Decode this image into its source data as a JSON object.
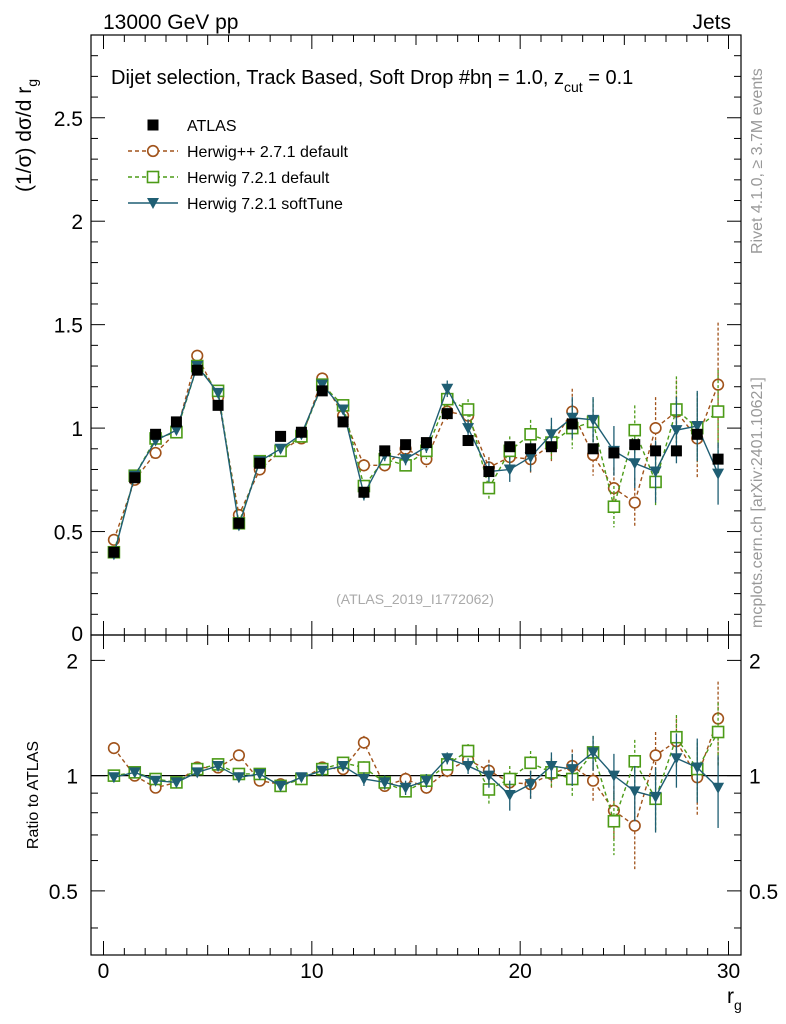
{
  "header": {
    "energy": "13000 GeV pp",
    "category": "Jets"
  },
  "side_labels": {
    "rivet": "Rivet 4.1.0, ≥ 3.7M events",
    "mcplots": "mcplots.cern.ch [arXiv:2401.10621]"
  },
  "colors": {
    "atlas": "#000000",
    "herwigpp": "#a0521a",
    "herwig7_default": "#4c9b17",
    "herwig7_soft": "#1f5e73",
    "ratio_line": "#000000"
  },
  "chart_data": [
    {
      "type": "scatter",
      "name": "main",
      "title": "Dijet selection, Track Based, Soft Drop #bη = 1.0, z",
      "title_sub": "cut",
      "title_tail": " = 0.1",
      "ylabel": "(1/σ) dσ/d r",
      "ylabel_sub": "g",
      "watermark": "(ATLAS_2019_I1772062)",
      "xlim": [
        -0.6,
        30.6
      ],
      "ylim": [
        0,
        2.9
      ],
      "yticks": [
        0.5,
        1,
        1.5,
        2,
        2.5
      ],
      "ytick_labels": [
        "0.5",
        "1",
        "1.5",
        "2",
        "2.5"
      ],
      "y0_label": "0",
      "x": [
        0.5,
        1.5,
        2.5,
        3.5,
        4.5,
        5.5,
        6.5,
        7.5,
        8.5,
        9.5,
        10.5,
        11.5,
        12.5,
        13.5,
        14.5,
        15.5,
        16.5,
        17.5,
        18.5,
        19.5,
        20.5,
        21.5,
        22.5,
        23.5,
        24.5,
        25.5,
        26.5,
        27.5,
        28.5,
        29.5
      ],
      "series": [
        {
          "name": "ATLAS",
          "key": "atlas",
          "marker": "square",
          "values": [
            0.4,
            0.76,
            0.97,
            1.03,
            1.28,
            1.11,
            0.54,
            0.83,
            0.96,
            0.98,
            1.18,
            1.03,
            0.69,
            0.89,
            0.92,
            0.93,
            1.07,
            0.94,
            0.79,
            0.91,
            0.9,
            0.91,
            1.02,
            0.9,
            0.88,
            0.92,
            0.89,
            0.89,
            0.97,
            0.85
          ],
          "errors": [
            0.01,
            0.01,
            0.01,
            0.01,
            0.01,
            0.01,
            0.01,
            0.01,
            0.01,
            0.01,
            0.01,
            0.01,
            0.01,
            0.01,
            0.01,
            0.01,
            0.01,
            0.01,
            0.01,
            0.01,
            0.01,
            0.01,
            0.01,
            0.01,
            0.01,
            0.01,
            0.01,
            0.01,
            0.01,
            0.01
          ]
        },
        {
          "name": "Herwig++ 2.7.1 default",
          "key": "herwigpp",
          "marker": "circle",
          "values": [
            0.46,
            0.75,
            0.88,
            0.98,
            1.35,
            1.15,
            0.58,
            0.8,
            0.89,
            0.95,
            1.24,
            1.06,
            0.82,
            0.82,
            0.9,
            0.85,
            1.08,
            1.06,
            0.81,
            0.86,
            0.85,
            0.92,
            1.08,
            0.87,
            0.71,
            0.64,
            1.0,
            1.08,
            0.95,
            1.21
          ],
          "errors": [
            0.01,
            0.01,
            0.01,
            0.01,
            0.01,
            0.02,
            0.02,
            0.02,
            0.02,
            0.02,
            0.02,
            0.03,
            0.03,
            0.03,
            0.04,
            0.04,
            0.04,
            0.05,
            0.05,
            0.06,
            0.07,
            0.08,
            0.11,
            0.1,
            0.1,
            0.12,
            0.15,
            0.15,
            0.19,
            0.3
          ]
        },
        {
          "name": "Herwig 7.2.1 default",
          "key": "herwig7_default",
          "marker": "opensquare",
          "values": [
            0.4,
            0.77,
            0.95,
            0.98,
            1.3,
            1.18,
            0.54,
            0.84,
            0.89,
            0.96,
            1.21,
            1.11,
            0.72,
            0.85,
            0.82,
            0.89,
            1.14,
            1.09,
            0.71,
            0.89,
            0.97,
            0.93,
            1.0,
            1.03,
            0.62,
            0.99,
            0.74,
            1.09,
            1.0,
            1.08
          ],
          "errors": [
            0.01,
            0.01,
            0.01,
            0.01,
            0.01,
            0.02,
            0.02,
            0.02,
            0.02,
            0.02,
            0.02,
            0.02,
            0.03,
            0.03,
            0.03,
            0.04,
            0.04,
            0.05,
            0.06,
            0.07,
            0.07,
            0.08,
            0.1,
            0.11,
            0.1,
            0.12,
            0.12,
            0.16,
            0.17,
            0.2
          ]
        },
        {
          "name": "Herwig 7.2.1 softTune",
          "key": "herwig7_soft",
          "marker": "triangle",
          "values": [
            0.39,
            0.77,
            0.94,
            0.99,
            1.3,
            1.17,
            0.53,
            0.84,
            0.9,
            0.97,
            1.21,
            1.09,
            0.68,
            0.87,
            0.85,
            0.91,
            1.19,
            1.0,
            0.79,
            0.8,
            0.86,
            0.97,
            1.05,
            1.04,
            0.89,
            0.83,
            0.79,
            0.99,
            1.01,
            0.78
          ],
          "errors": [
            0.01,
            0.01,
            0.01,
            0.01,
            0.01,
            0.02,
            0.02,
            0.02,
            0.02,
            0.02,
            0.02,
            0.02,
            0.03,
            0.03,
            0.03,
            0.03,
            0.04,
            0.04,
            0.05,
            0.06,
            0.07,
            0.08,
            0.1,
            0.11,
            0.12,
            0.12,
            0.15,
            0.16,
            0.17,
            0.15
          ]
        }
      ]
    },
    {
      "type": "scatter",
      "name": "ratio",
      "ylabel": "Ratio to ATLAS",
      "xlabel": "r",
      "xlabel_sub": "g",
      "xlim": [
        -0.6,
        30.6
      ],
      "ylim": [
        0.34,
        2.33
      ],
      "yticks": [
        0.5,
        1,
        2
      ],
      "ytick_labels": [
        "0.5",
        "1",
        "2"
      ],
      "xticks": [
        0,
        10,
        20,
        30
      ],
      "xtick_labels": [
        "0",
        "10",
        "20",
        "30"
      ],
      "x": [
        0.5,
        1.5,
        2.5,
        3.5,
        4.5,
        5.5,
        6.5,
        7.5,
        8.5,
        9.5,
        10.5,
        11.5,
        12.5,
        13.5,
        14.5,
        15.5,
        16.5,
        17.5,
        18.5,
        19.5,
        20.5,
        21.5,
        22.5,
        23.5,
        24.5,
        25.5,
        26.5,
        27.5,
        28.5,
        29.5
      ],
      "series": [
        {
          "name": "Herwig++ 2.7.1 default",
          "key": "herwigpp",
          "marker": "circle",
          "values": [
            1.18,
            1.0,
            0.93,
            0.96,
            1.05,
            1.05,
            1.13,
            0.97,
            0.95,
            0.98,
            1.05,
            1.04,
            1.22,
            0.94,
            0.98,
            0.93,
            1.03,
            1.1,
            1.03,
            0.96,
            0.95,
            1.01,
            1.06,
            0.97,
            0.81,
            0.74,
            1.13,
            1.23,
            0.99,
            1.41
          ],
          "errors": [
            0.02,
            0.02,
            0.02,
            0.02,
            0.02,
            0.02,
            0.03,
            0.02,
            0.02,
            0.02,
            0.02,
            0.03,
            0.05,
            0.04,
            0.04,
            0.04,
            0.04,
            0.05,
            0.07,
            0.07,
            0.08,
            0.09,
            0.11,
            0.11,
            0.13,
            0.17,
            0.17,
            0.18,
            0.2,
            0.35
          ]
        },
        {
          "name": "Herwig 7.2.1 default",
          "key": "herwig7_default",
          "marker": "opensquare",
          "values": [
            1.0,
            1.02,
            0.98,
            0.96,
            1.04,
            1.07,
            1.01,
            1.01,
            0.94,
            0.98,
            1.04,
            1.08,
            1.05,
            0.96,
            0.91,
            0.97,
            1.07,
            1.16,
            0.92,
            0.98,
            1.08,
            1.02,
            0.98,
            1.15,
            0.76,
            1.09,
            0.87,
            1.26,
            1.04,
            1.3
          ],
          "errors": [
            0.02,
            0.02,
            0.02,
            0.02,
            0.02,
            0.02,
            0.03,
            0.02,
            0.02,
            0.02,
            0.02,
            0.02,
            0.04,
            0.04,
            0.04,
            0.04,
            0.04,
            0.05,
            0.08,
            0.08,
            0.08,
            0.09,
            0.1,
            0.12,
            0.14,
            0.15,
            0.15,
            0.18,
            0.18,
            0.25
          ]
        },
        {
          "name": "Herwig 7.2.1 softTune",
          "key": "herwig7_soft",
          "marker": "triangle",
          "values": [
            0.99,
            1.02,
            0.97,
            0.96,
            1.02,
            1.06,
            0.99,
            1.01,
            0.94,
            0.99,
            1.03,
            1.06,
            0.98,
            0.96,
            0.93,
            0.97,
            1.11,
            1.06,
            1.0,
            0.89,
            0.95,
            1.06,
            1.04,
            1.15,
            1.0,
            0.91,
            0.88,
            1.11,
            1.05,
            0.93
          ],
          "errors": [
            0.02,
            0.02,
            0.02,
            0.02,
            0.02,
            0.02,
            0.03,
            0.02,
            0.02,
            0.02,
            0.02,
            0.02,
            0.04,
            0.04,
            0.04,
            0.04,
            0.04,
            0.05,
            0.07,
            0.08,
            0.08,
            0.09,
            0.1,
            0.12,
            0.14,
            0.15,
            0.17,
            0.18,
            0.2,
            0.2
          ]
        }
      ]
    }
  ]
}
